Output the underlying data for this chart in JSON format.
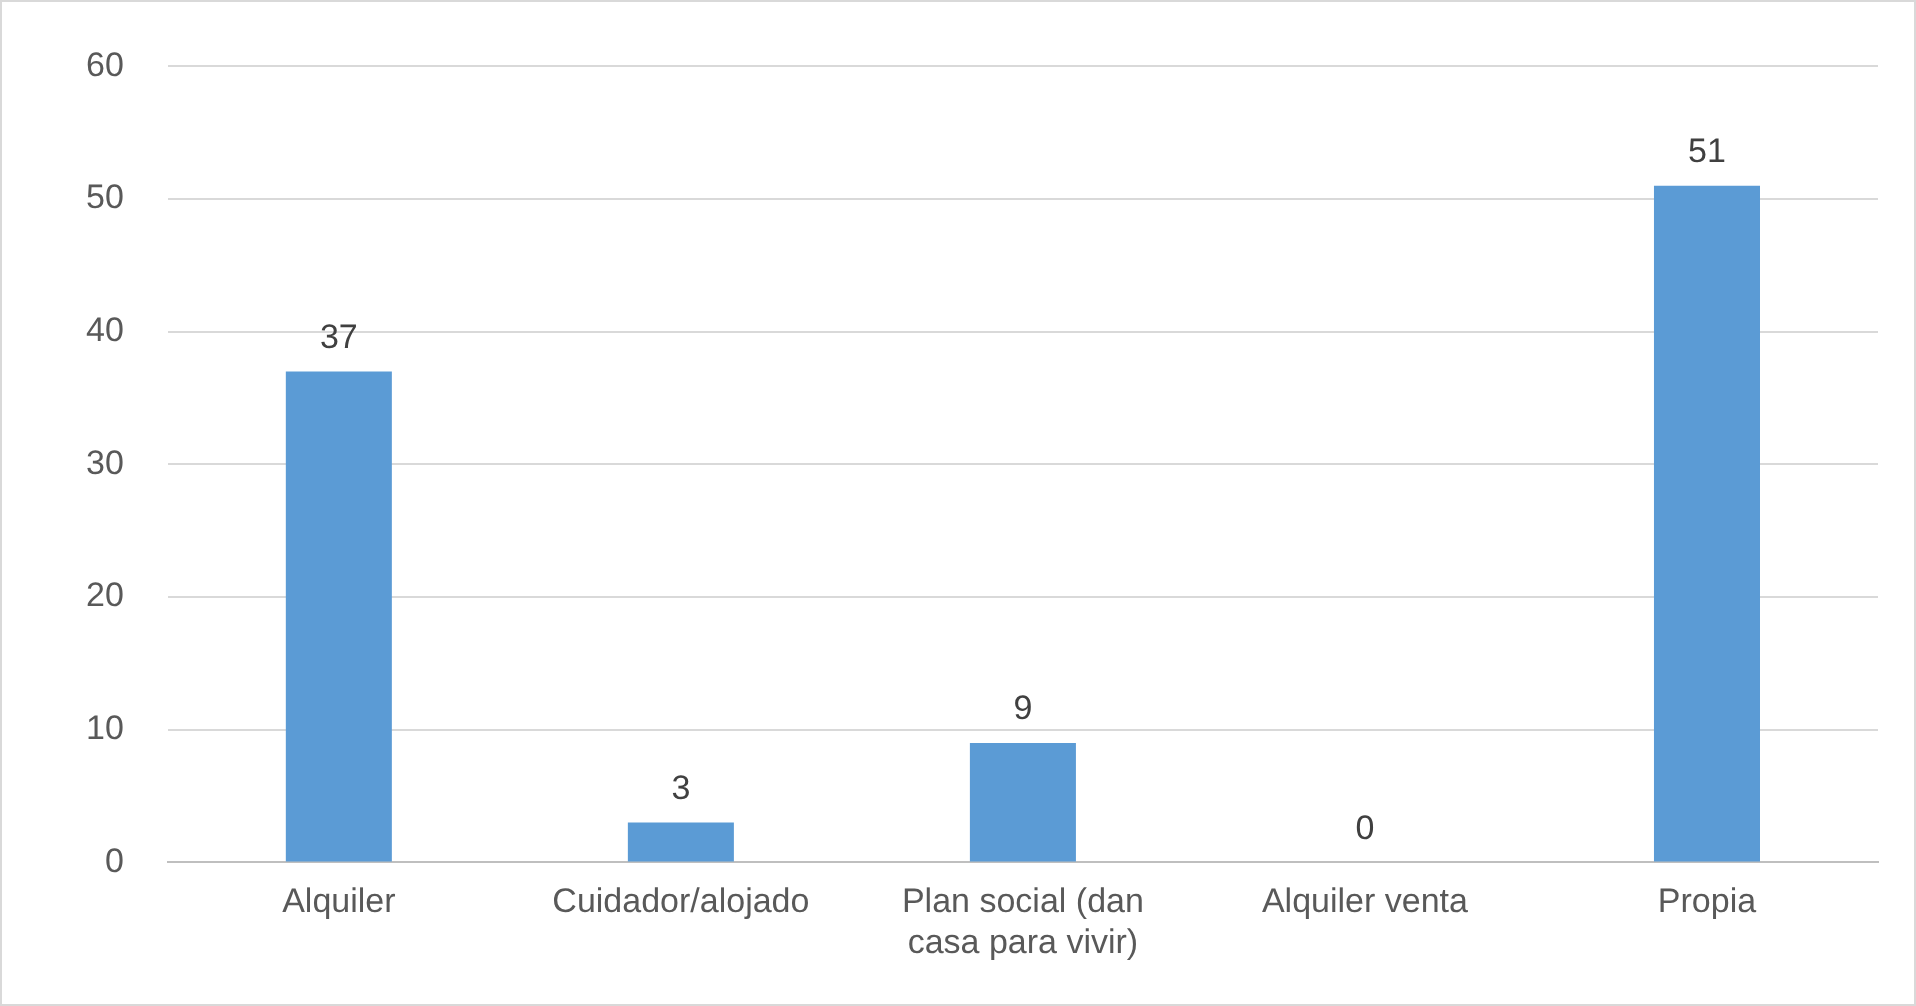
{
  "chart_data": {
    "type": "bar",
    "categories": [
      "Alquiler",
      "Cuidador/alojado",
      "Plan social (dan casa para vivir)",
      "Alquiler venta",
      "Propia"
    ],
    "values": [
      37,
      3,
      9,
      0,
      51
    ],
    "color": "#5b9bd5",
    "ylim": [
      0,
      60
    ],
    "yticks": [
      0,
      10,
      20,
      30,
      40,
      50,
      60
    ],
    "grid": "y",
    "data_labels": true,
    "legend": false
  }
}
